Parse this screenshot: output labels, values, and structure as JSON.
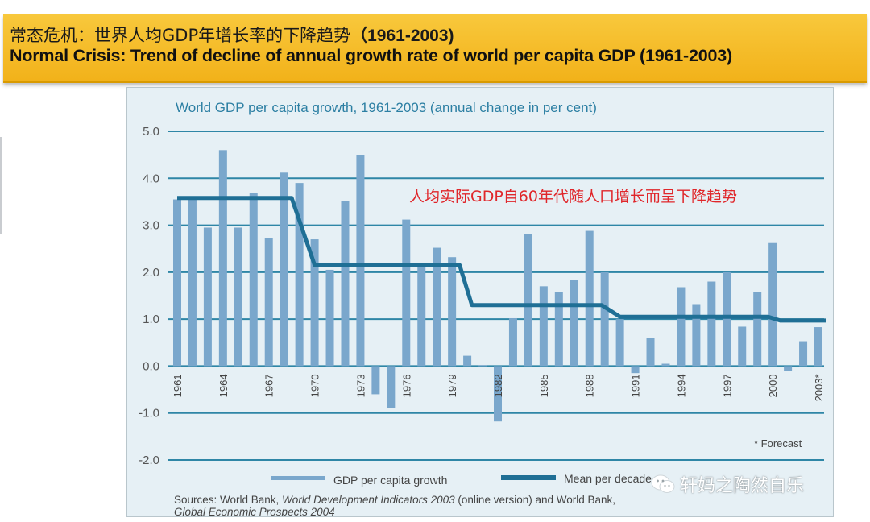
{
  "header": {
    "title_cn": "常态危机：世界人均GDP年增长率的下降趋势",
    "title_cn_years": "（1961-2003)",
    "title_en": "Normal Crisis: Trend of decline of annual growth rate of world per capita GDP (1961-2003)"
  },
  "chart_data": {
    "type": "bar",
    "title": "World GDP per capita growth, 1961-2003 (annual change in per cent)",
    "annotation": "人均实际GDP自60年代随人口增长而呈下降趋势",
    "forecast_note": "* Forecast",
    "ylim": [
      -2.0,
      5.0
    ],
    "yticks": [
      "5.0",
      "4.0",
      "3.0",
      "2.0",
      "1.0",
      "0.0",
      "-1.0",
      "-2.0"
    ],
    "ytick_values": [
      5,
      4,
      3,
      2,
      1,
      0,
      -1,
      -2
    ],
    "xtick_labels": [
      "1961",
      "1964",
      "1967",
      "1970",
      "1973",
      "1976",
      "1979",
      "1982",
      "1985",
      "1988",
      "1991",
      "1994",
      "1997",
      "2000",
      "2003*"
    ],
    "xtick_years": [
      1961,
      1964,
      1967,
      1970,
      1973,
      1976,
      1979,
      1982,
      1985,
      1988,
      1991,
      1994,
      1997,
      2000,
      2003
    ],
    "grid": true,
    "legend_position": "bottom",
    "series": [
      {
        "name": "GDP per capita growth",
        "type": "bar",
        "color": "#7aa7cc",
        "x": [
          1961,
          1962,
          1963,
          1964,
          1965,
          1966,
          1967,
          1968,
          1969,
          1970,
          1971,
          1972,
          1973,
          1974,
          1975,
          1976,
          1977,
          1978,
          1979,
          1980,
          1981,
          1982,
          1983,
          1984,
          1985,
          1986,
          1987,
          1988,
          1989,
          1990,
          1991,
          1992,
          1993,
          1994,
          1995,
          1996,
          1997,
          1998,
          1999,
          2000,
          2001,
          2002,
          2003
        ],
        "values": [
          3.55,
          3.55,
          2.95,
          4.6,
          2.95,
          3.68,
          2.72,
          4.12,
          3.9,
          2.7,
          2.05,
          3.52,
          4.5,
          -0.6,
          -0.9,
          3.12,
          2.12,
          2.52,
          2.32,
          0.22,
          0.02,
          -1.18,
          1.02,
          2.82,
          1.7,
          1.57,
          1.84,
          2.88,
          2.0,
          1.0,
          -0.15,
          0.6,
          0.05,
          1.68,
          1.32,
          1.8,
          2.0,
          0.84,
          1.58,
          2.62,
          -0.1,
          0.53,
          0.83
        ]
      },
      {
        "name": "Mean per decade",
        "type": "step",
        "color": "#1f6f95",
        "points": [
          [
            1961,
            3.58
          ],
          [
            1968.5,
            3.58
          ],
          [
            1970,
            2.15
          ],
          [
            1979.5,
            2.15
          ],
          [
            1980.3,
            1.3
          ],
          [
            1988.8,
            1.3
          ],
          [
            1990,
            1.05
          ],
          [
            1999.7,
            1.05
          ],
          [
            2000.5,
            0.97
          ],
          [
            2003.5,
            0.97
          ]
        ]
      }
    ],
    "source_text": "Sources: World Bank, ",
    "source_italic": "World Development Indicators 2003",
    "source_text2": " (online version) and World Bank,",
    "source_italic2": "Global Economic Prospects 2004",
    "legend_bar_label": "GDP per capita growth",
    "legend_line_label": "Mean per decade",
    "colors": {
      "bar": "#7aa7cc",
      "mean": "#1f6f95",
      "grid": "#2e86a6",
      "annotation": "#e0262a",
      "title": "#2c7fa3"
    }
  },
  "watermark": "轩妈之陶然自乐",
  "colors": {
    "header_bg": "#f4b822",
    "chart_bg": "#e6f0f5"
  }
}
